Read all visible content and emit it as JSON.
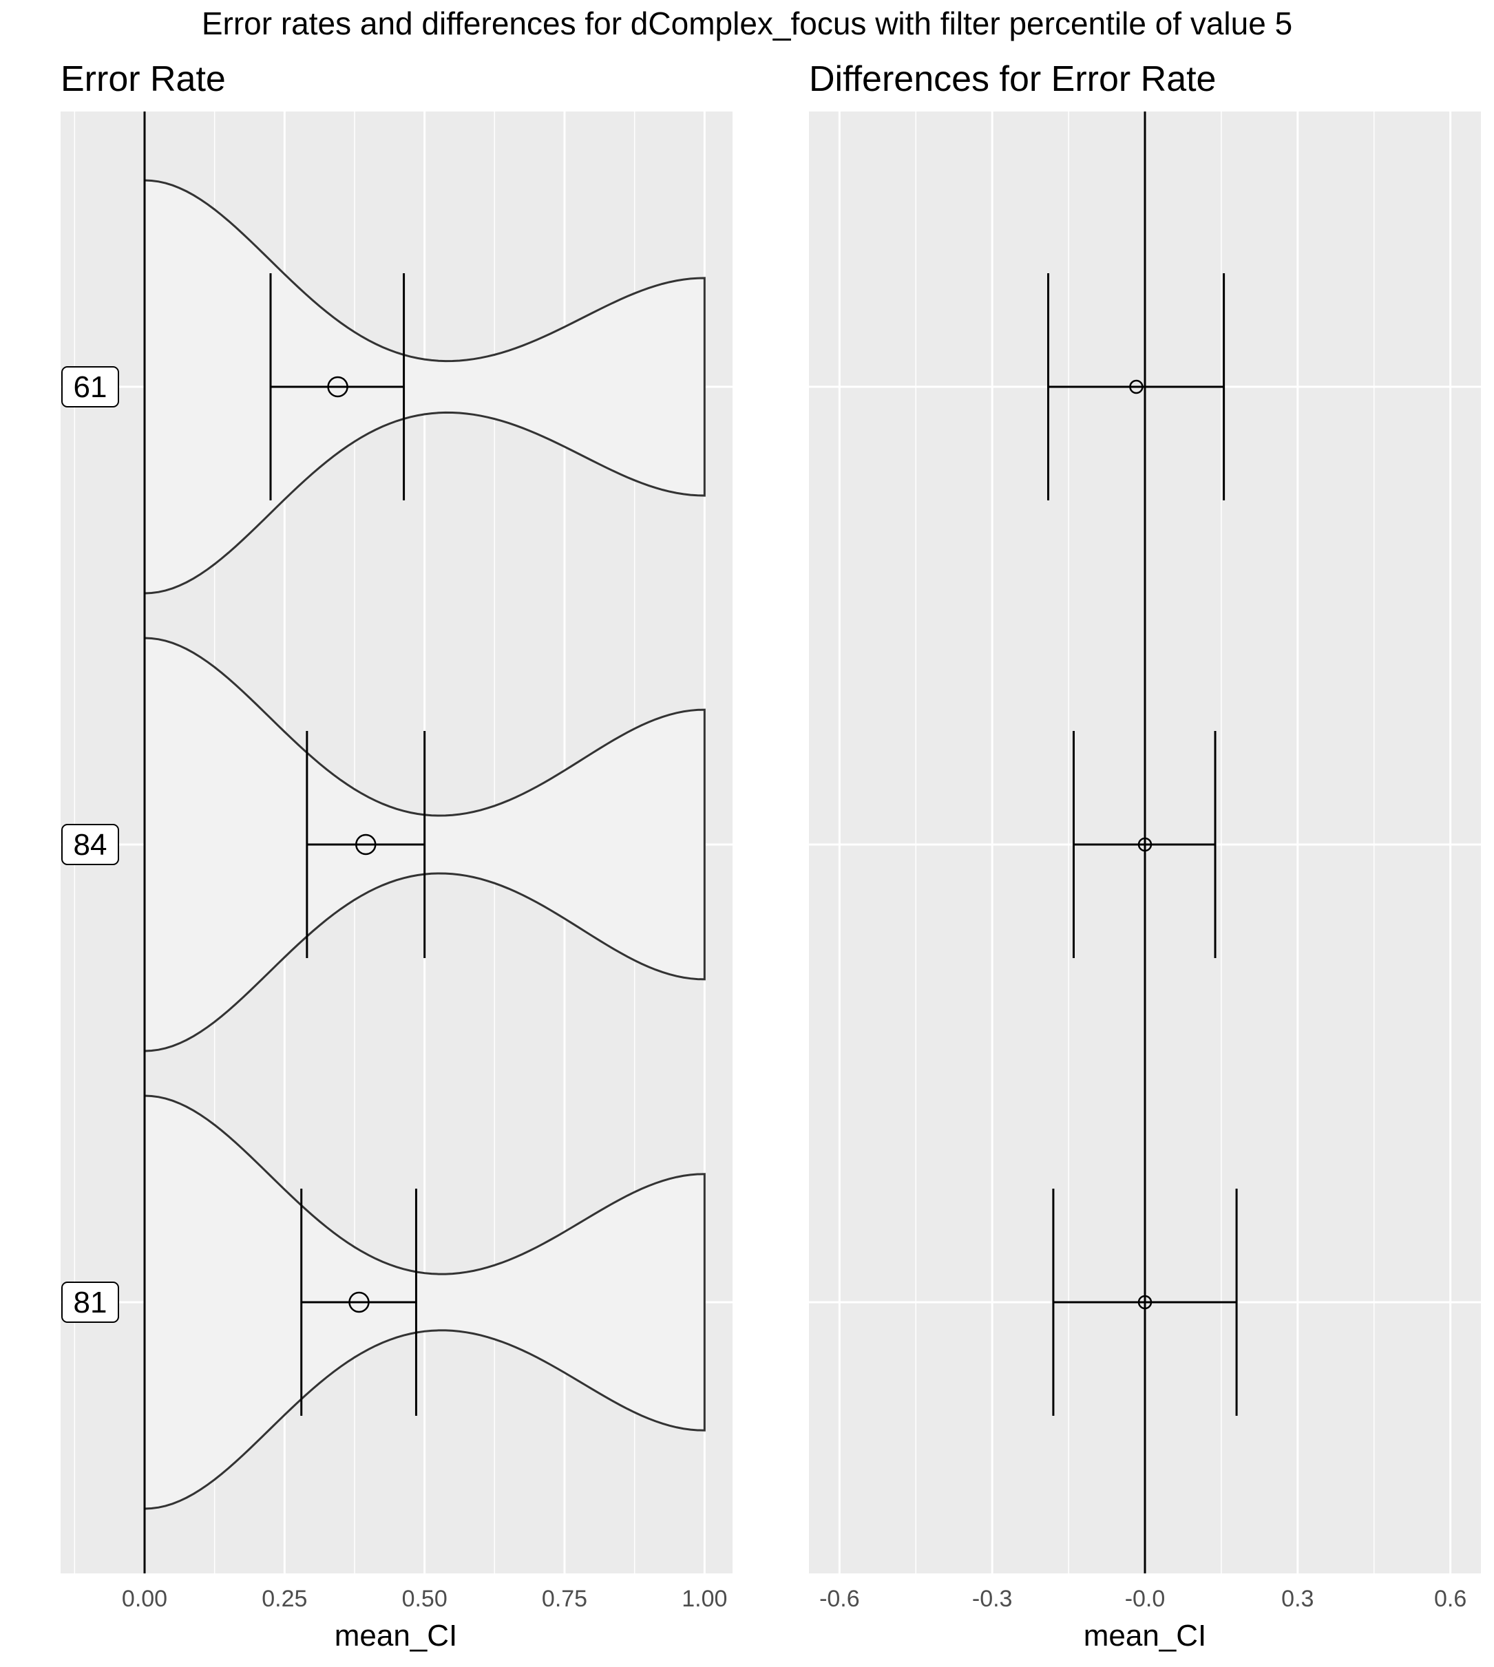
{
  "title": "Error rates and differences for dComplex_focus with filter percentile of value 5",
  "chart_data": [
    {
      "type": "violin",
      "title": "Error Rate",
      "xlabel": "mean_CI",
      "ylabel": "",
      "xlim": [
        -0.15,
        1.05
      ],
      "xticks": [
        "0.00",
        "0.25",
        "0.50",
        "0.75",
        "1.00"
      ],
      "xtick_values": [
        0,
        0.25,
        0.5,
        0.75,
        1.0
      ],
      "grid": true,
      "groups": [
        {
          "label": "61",
          "mean": 0.345,
          "ci": [
            0.225,
            0.463
          ]
        },
        {
          "label": "84",
          "mean": 0.395,
          "ci": [
            0.29,
            0.5
          ]
        },
        {
          "label": "81",
          "mean": 0.383,
          "ci": [
            0.28,
            0.485
          ]
        }
      ]
    },
    {
      "type": "errorbar",
      "title": "Differences for Error Rate",
      "xlabel": "mean_CI",
      "ylabel": "",
      "xlim": [
        -0.66,
        0.66
      ],
      "xticks": [
        "-0.6",
        "-0.3",
        "-0.0",
        "0.3",
        "0.6"
      ],
      "xtick_values": [
        -0.6,
        -0.3,
        0,
        0.3,
        0.6
      ],
      "reference_line": 0,
      "grid": true,
      "groups": [
        {
          "label": "61",
          "mean": -0.017,
          "ci": [
            -0.19,
            0.155
          ]
        },
        {
          "label": "84",
          "mean": 0.0,
          "ci": [
            -0.14,
            0.138
          ]
        },
        {
          "label": "81",
          "mean": 0.0,
          "ci": [
            -0.18,
            0.18
          ]
        }
      ]
    }
  ],
  "colors": {
    "panel_background": "#ebebeb",
    "grid": "#ffffff",
    "violin_fill": "#f2f2f2",
    "violin_stroke": "#333333",
    "marks": "#000000"
  }
}
